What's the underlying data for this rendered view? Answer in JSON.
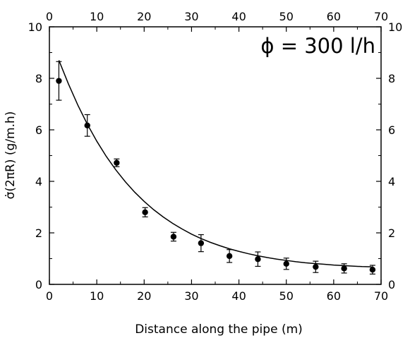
{
  "chart_data": {
    "type": "scatter",
    "xlabel": "Distance along the pipe (m)",
    "ylabel": "σ̇(2πR)  (g/m.h)",
    "annotation": "ϕ = 300 l/h",
    "xlim": [
      0,
      70
    ],
    "ylim": [
      0,
      10
    ],
    "x_ticks": [
      0,
      10,
      20,
      30,
      40,
      50,
      60,
      70
    ],
    "y_ticks": [
      0,
      2,
      4,
      6,
      8,
      10
    ],
    "grid": false,
    "points": {
      "x": [
        2,
        8,
        14.2,
        20.2,
        26.2,
        32,
        38,
        44,
        50,
        56.2,
        62.2,
        68.2
      ],
      "y": [
        7.9,
        6.17,
        4.72,
        2.8,
        1.85,
        1.6,
        1.1,
        0.98,
        0.8,
        0.68,
        0.62,
        0.57
      ],
      "y_err": [
        0.75,
        0.42,
        0.15,
        0.18,
        0.17,
        0.33,
        0.25,
        0.28,
        0.22,
        0.22,
        0.18,
        0.17
      ]
    },
    "fit_curve": {
      "x": [
        2,
        4,
        6,
        8,
        10,
        12,
        14,
        16,
        18,
        20,
        22,
        24,
        26,
        28,
        30,
        32,
        34,
        36,
        38,
        40,
        42,
        44,
        46,
        48,
        50,
        52,
        54,
        56,
        58,
        60,
        62,
        64,
        66,
        68
      ],
      "y": [
        8.7,
        7.79,
        6.96,
        6.22,
        5.56,
        4.97,
        4.45,
        3.99,
        3.58,
        3.22,
        2.9,
        2.62,
        2.37,
        2.15,
        1.95,
        1.78,
        1.63,
        1.5,
        1.38,
        1.28,
        1.19,
        1.11,
        1.04,
        0.98,
        0.93,
        0.88,
        0.84,
        0.81,
        0.78,
        0.75,
        0.73,
        0.71,
        0.69,
        0.68
      ]
    },
    "colors": {
      "marks": "#000000",
      "background": "#ffffff"
    }
  }
}
